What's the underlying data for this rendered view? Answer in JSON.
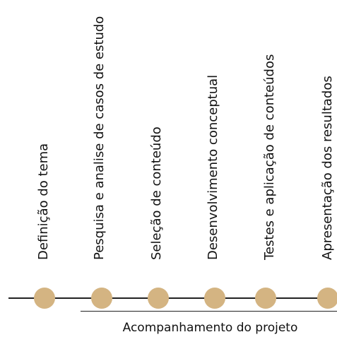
{
  "colors": {
    "dot": "#d4b482",
    "line": "#222222",
    "text": "#111111"
  },
  "steps": [
    {
      "label": "Definição do tema"
    },
    {
      "label": "Pesquisa e analise de casos de estudo"
    },
    {
      "label": "Seleção de conteúdo"
    },
    {
      "label": "Desenvolvimento conceptual"
    },
    {
      "label": "Testes e aplicação de conteúdos"
    },
    {
      "label": "Apresentação dos resultados"
    }
  ],
  "bracket": {
    "caption": "Acompanhamento do projeto"
  }
}
